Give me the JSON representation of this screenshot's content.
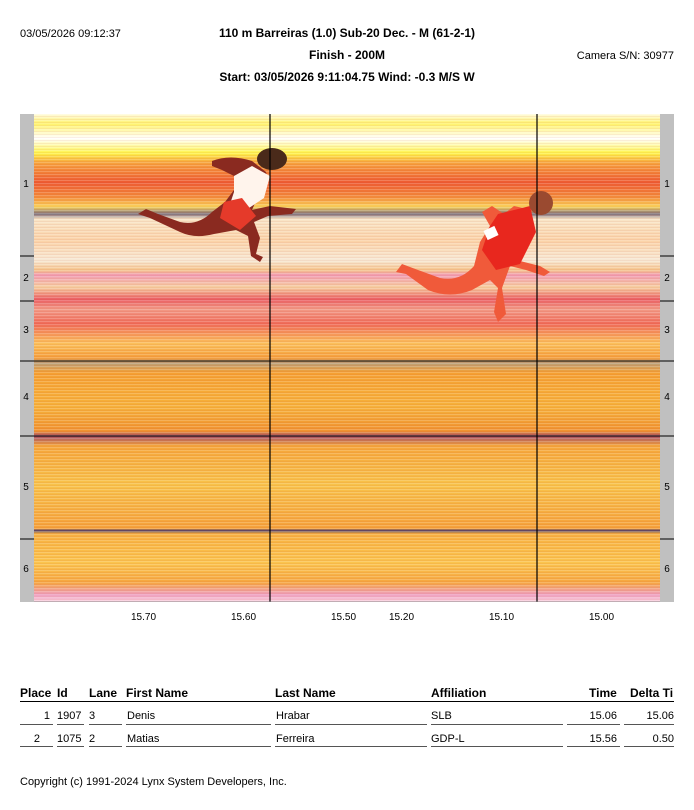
{
  "header": {
    "datetime": "03/05/2026 09:12:37",
    "title": "110 m Barreiras (1.0)  Sub-20 Dec. - M (61-2-1)",
    "subtitle": "Finish - 200M",
    "start_line": "Start: 03/05/2026 9:11:04.75     Wind: -0.3 M/S W",
    "camera": "Camera S/N: 30977"
  },
  "photo": {
    "lanes": [
      "1",
      "2",
      "3",
      "4",
      "5",
      "6"
    ],
    "time_ticks": [
      "15.70",
      "15.60",
      "15.50",
      "15.20",
      "15.10",
      "15.00"
    ]
  },
  "results": {
    "columns": {
      "place": "Place",
      "id": "Id",
      "lane": "Lane",
      "first_name": "First Name",
      "last_name": "Last Name",
      "affiliation": "Affiliation",
      "time": "Time",
      "delta": "Delta Ti"
    },
    "rows": [
      {
        "place": "1",
        "id": "1907",
        "lane": "3",
        "first_name": "Denis",
        "last_name": "Hrabar",
        "affiliation": "SLB",
        "time": "15.06",
        "delta": "15.06"
      },
      {
        "place": "2",
        "id": "1075",
        "lane": "2",
        "first_name": "Matias",
        "last_name": "Ferreira",
        "affiliation": "GDP-L",
        "time": "15.56",
        "delta": "0.50"
      }
    ]
  },
  "footer": {
    "copyright": "Copyright (c) 1991-2024 Lynx System Developers, Inc."
  }
}
